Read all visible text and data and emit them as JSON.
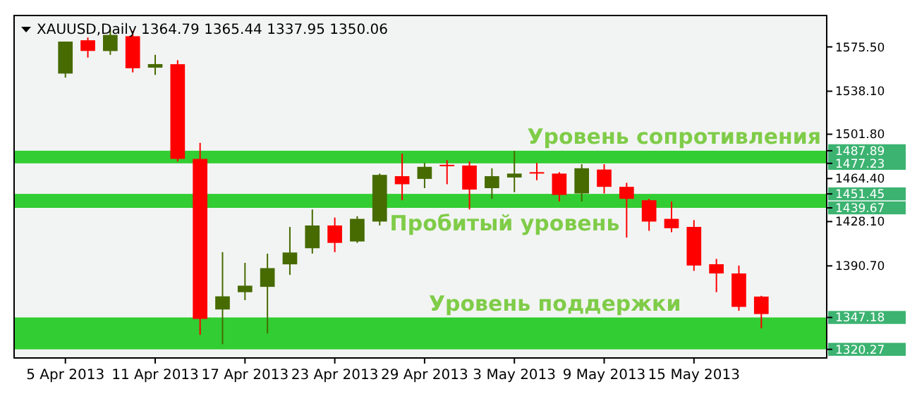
{
  "chart_data": {
    "type": "candlestick",
    "title": "XAUUSD,Daily  1364.79 1365.44 1337.95 1350.06",
    "categories": [
      "5 Apr 2013",
      null,
      null,
      null,
      "11 Apr 2013",
      null,
      null,
      null,
      "17 Apr 2013",
      null,
      null,
      null,
      "23 Apr 2013",
      null,
      null,
      null,
      "29 Apr 2013",
      null,
      null,
      null,
      "3 May 2013",
      null,
      null,
      null,
      "9 May 2013",
      null,
      null,
      null,
      "15 May 2013",
      null,
      null,
      null
    ],
    "ohlc": [
      [
        1553,
        1580,
        1549.6,
        1580
      ],
      [
        1581.1,
        1583.4,
        1566.5,
        1572.1
      ],
      [
        1572,
        1590,
        1568.8,
        1585.6
      ],
      [
        1584.5,
        1589,
        1554,
        1557.5
      ],
      [
        1558,
        1568.8,
        1551.9,
        1561
      ],
      [
        1560.9,
        1564.3,
        1478.8,
        1481
      ],
      [
        1481,
        1494.5,
        1332.5,
        1346
      ],
      [
        1353.9,
        1402.3,
        1324.6,
        1365
      ],
      [
        1368.5,
        1393.3,
        1361.8,
        1374
      ],
      [
        1373,
        1401,
        1333.6,
        1388.8
      ],
      [
        1392,
        1423.6,
        1383.1,
        1402
      ],
      [
        1405.6,
        1438.3,
        1401.1,
        1424.8
      ],
      [
        1424.8,
        1431.5,
        1402.3,
        1410.1
      ],
      [
        1411.3,
        1432.6,
        1410.1,
        1430.4
      ],
      [
        1428.1,
        1468.6,
        1424.8,
        1467.5
      ],
      [
        1466.4,
        1485.5,
        1446.1,
        1459.6
      ],
      [
        1464.1,
        1477.6,
        1456.3,
        1474.3
      ],
      [
        1476,
        1479.9,
        1459.6,
        1474.8
      ],
      [
        1475.4,
        1478.8,
        1438.3,
        1455.1
      ],
      [
        1456.3,
        1473.1,
        1447.3,
        1466.4
      ],
      [
        1465.3,
        1487.8,
        1452.9,
        1468.6
      ],
      [
        1469.8,
        1477.6,
        1463,
        1468.6
      ],
      [
        1468.6,
        1469.8,
        1445,
        1450.6
      ],
      [
        1451.8,
        1476.5,
        1445,
        1473.1
      ],
      [
        1472,
        1476.5,
        1451.8,
        1457.4
      ],
      [
        1457.4,
        1460.8,
        1414.6,
        1447.3
      ],
      [
        1446.1,
        1447.3,
        1420.3,
        1428.1
      ],
      [
        1430.4,
        1445,
        1419.1,
        1422.5
      ],
      [
        1423.6,
        1429.3,
        1386.5,
        1391
      ],
      [
        1392.1,
        1396.6,
        1368.5,
        1384.3
      ],
      [
        1384.3,
        1391,
        1352.8,
        1356.1
      ],
      [
        1364.79,
        1365.44,
        1337.95,
        1350.06
      ]
    ],
    "ylim": [
      1313,
      1602
    ],
    "yticks": [
      {
        "value": 1575.5,
        "label": "1575.50"
      },
      {
        "value": 1538.1,
        "label": "1538.10"
      },
      {
        "value": 1501.8,
        "label": "1501.80"
      },
      {
        "value": 1487.89,
        "label": "1487.89"
      },
      {
        "value": 1477.23,
        "label": "1477.23"
      },
      {
        "value": 1464.4,
        "label": "1464.40"
      },
      {
        "value": 1451.45,
        "label": "1451.45"
      },
      {
        "value": 1439.67,
        "label": "1439.67"
      },
      {
        "value": 1428.1,
        "label": "1428.10"
      },
      {
        "value": 1390.7,
        "label": "1390.70"
      },
      {
        "value": 1347.18,
        "label": "1347.18"
      },
      {
        "value": 1320.27,
        "label": "1320.27"
      }
    ],
    "bands": [
      {
        "axis": "y",
        "from": 1477.23,
        "to": 1487.89,
        "label": "Уровень сопротивления",
        "color": "#32cd32"
      },
      {
        "axis": "y",
        "from": 1439.67,
        "to": 1451.45,
        "label": "Пробитый уровень",
        "color": "#32cd32"
      },
      {
        "axis": "y",
        "from": 1320.27,
        "to": 1347.18,
        "label": "Уровень поддержки",
        "color": "#32cd32"
      }
    ]
  }
}
